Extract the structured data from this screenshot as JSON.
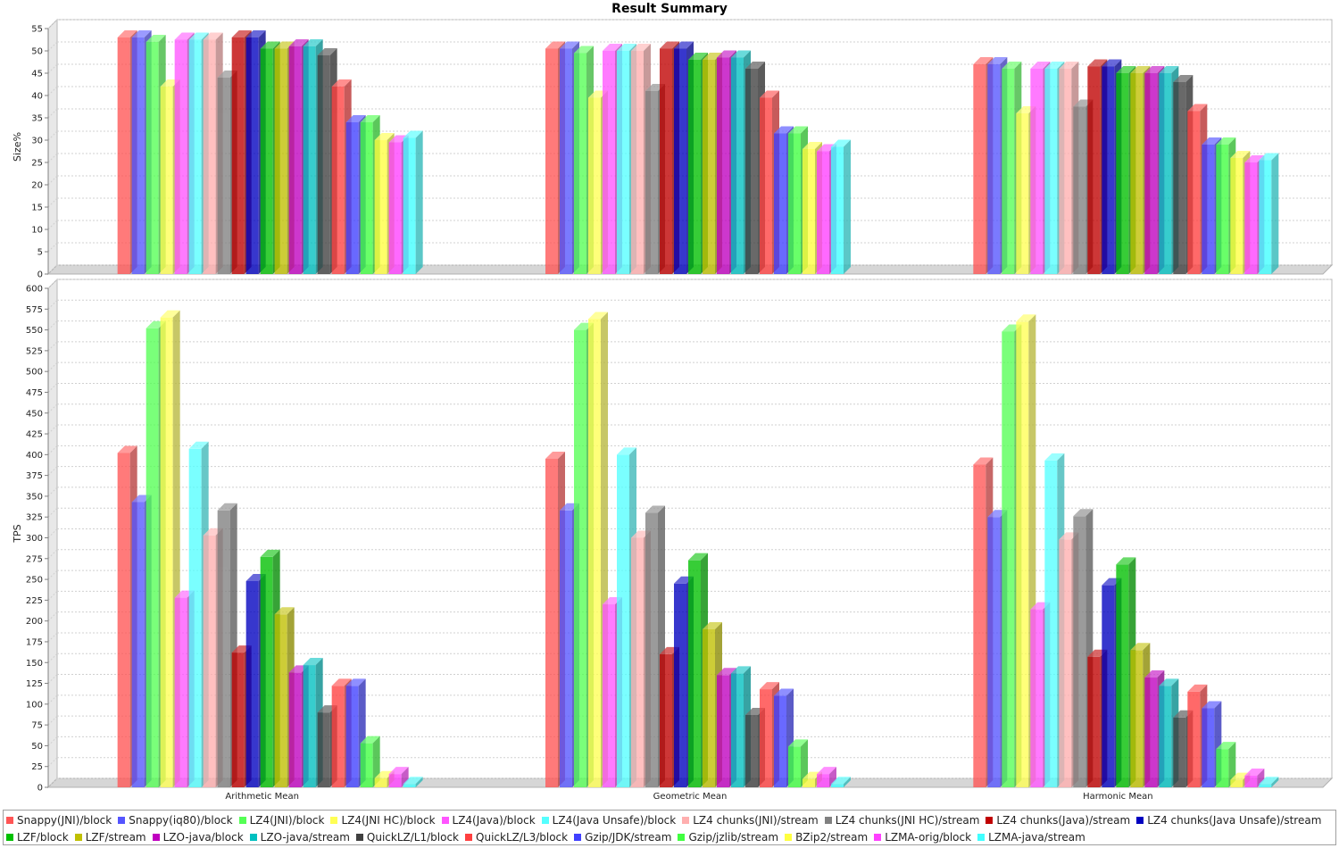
{
  "chart_data": {
    "type": "bar",
    "title": "Result Summary",
    "categories": [
      "Arithmetic Mean",
      "Geometric Mean",
      "Harmonic Mean"
    ],
    "subplots": [
      {
        "ylabel": "Size%",
        "ylim": [
          0,
          55
        ],
        "ticks": [
          0,
          5,
          10,
          15,
          20,
          25,
          30,
          35,
          40,
          45,
          50,
          55
        ],
        "grid": true
      },
      {
        "ylabel": "TPS",
        "ylim": [
          0,
          600
        ],
        "ticks": [
          0,
          25,
          50,
          75,
          100,
          125,
          150,
          175,
          200,
          225,
          250,
          275,
          300,
          325,
          350,
          375,
          400,
          425,
          450,
          475,
          500,
          525,
          550,
          575,
          600
        ],
        "grid": true
      }
    ],
    "legend_position": "bottom",
    "series": [
      {
        "name": "Snappy(JNI)/block",
        "color": "#ff5555",
        "size": [
          53,
          50.5,
          47
        ],
        "tps": [
          402,
          395,
          388
        ]
      },
      {
        "name": "Snappy(iq80)/block",
        "color": "#5555ff",
        "size": [
          53,
          50.5,
          47
        ],
        "tps": [
          343,
          333,
          325
        ]
      },
      {
        "name": "LZ4(JNI)/block",
        "color": "#55ff55",
        "size": [
          52,
          49.5,
          46
        ],
        "tps": [
          552,
          550,
          548
        ]
      },
      {
        "name": "LZ4(JNI HC)/block",
        "color": "#ffff55",
        "size": [
          42,
          39.5,
          36
        ],
        "tps": [
          565,
          563,
          560
        ]
      },
      {
        "name": "LZ4(Java)/block",
        "color": "#ff55ff",
        "size": [
          52.5,
          50,
          46
        ],
        "tps": [
          228,
          220,
          214
        ]
      },
      {
        "name": "LZ4(Java Unsafe)/block",
        "color": "#55ffff",
        "size": [
          52.5,
          50,
          46
        ],
        "tps": [
          407,
          400,
          393
        ]
      },
      {
        "name": "LZ4 chunks(JNI)/stream",
        "color": "#ffafaf",
        "size": [
          52.5,
          50,
          46
        ],
        "tps": [
          303,
          300,
          298
        ]
      },
      {
        "name": "LZ4 chunks(JNI HC)/stream",
        "color": "#808080",
        "size": [
          44,
          41,
          37.5
        ],
        "tps": [
          333,
          330,
          326
        ]
      },
      {
        "name": "LZ4 chunks(Java)/stream",
        "color": "#c00000",
        "size": [
          53,
          50.5,
          46.5
        ],
        "tps": [
          162,
          160,
          157
        ]
      },
      {
        "name": "LZ4 chunks(Java Unsafe)/stream",
        "color": "#0000c0",
        "size": [
          53,
          50.5,
          46.5
        ],
        "tps": [
          248,
          245,
          243
        ]
      },
      {
        "name": "LZF/block",
        "color": "#00c000",
        "size": [
          50.5,
          48,
          45
        ],
        "tps": [
          277,
          273,
          268
        ]
      },
      {
        "name": "LZF/stream",
        "color": "#c0c000",
        "size": [
          50.5,
          48,
          45
        ],
        "tps": [
          208,
          190,
          165
        ]
      },
      {
        "name": "LZO-java/block",
        "color": "#c000c0",
        "size": [
          51,
          48.5,
          45
        ],
        "tps": [
          138,
          135,
          132
        ]
      },
      {
        "name": "LZO-java/stream",
        "color": "#00c0c0",
        "size": [
          51,
          48.5,
          45
        ],
        "tps": [
          147,
          137,
          122
        ]
      },
      {
        "name": "QuickLZ/L1/block",
        "color": "#404040",
        "size": [
          49,
          46,
          43
        ],
        "tps": [
          90,
          87,
          84
        ]
      },
      {
        "name": "QuickLZ/L3/block",
        "color": "#ff4040",
        "size": [
          42,
          39.5,
          36.5
        ],
        "tps": [
          122,
          118,
          115
        ]
      },
      {
        "name": "Gzip/JDK/stream",
        "color": "#4040ff",
        "size": [
          34,
          31.5,
          29
        ],
        "tps": [
          122,
          110,
          95
        ]
      },
      {
        "name": "Gzip/jzlib/stream",
        "color": "#40ff40",
        "size": [
          34,
          31.5,
          29
        ],
        "tps": [
          53,
          49,
          46
        ]
      },
      {
        "name": "BZip2/stream",
        "color": "#ffff40",
        "size": [
          30,
          28,
          26
        ],
        "tps": [
          11,
          10,
          9
        ]
      },
      {
        "name": "LZMA-orig/block",
        "color": "#ff40ff",
        "size": [
          29.5,
          27.5,
          25
        ],
        "tps": [
          16,
          16,
          14
        ]
      },
      {
        "name": "LZMA-java/stream",
        "color": "#40ffff",
        "size": [
          30.5,
          28.5,
          25.5
        ],
        "tps": [
          4,
          4,
          4
        ]
      }
    ]
  }
}
